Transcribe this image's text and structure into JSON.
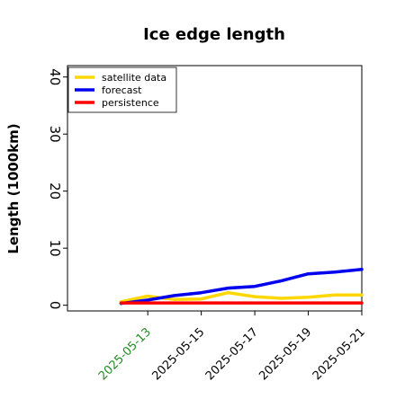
{
  "chart_data": {
    "type": "line",
    "title": "Ice edge length",
    "xlabel": "",
    "ylabel": "Length (1000km)",
    "x": [
      "2025-05-12",
      "2025-05-13",
      "2025-05-14",
      "2025-05-15",
      "2025-05-16",
      "2025-05-17",
      "2025-05-18",
      "2025-05-19",
      "2025-05-20",
      "2025-05-21"
    ],
    "xticks": [
      "2025-05-13",
      "2025-05-15",
      "2025-05-17",
      "2025-05-19",
      "2025-05-21"
    ],
    "xtick_colors": [
      "#228b22",
      "#000000",
      "#000000",
      "#000000",
      "#000000"
    ],
    "xlim": [
      "2025-05-10",
      "2025-05-21"
    ],
    "ylim": [
      -1,
      42
    ],
    "yticks": [
      0,
      10,
      20,
      30,
      40
    ],
    "grid": false,
    "legend_position": "top-left",
    "series": [
      {
        "name": "satellite data",
        "color": "#ffd700",
        "values": [
          0.6,
          1.6,
          1.0,
          1.1,
          2.2,
          1.5,
          1.2,
          1.4,
          1.8,
          1.8
        ]
      },
      {
        "name": "forecast",
        "color": "#0000ee",
        "values": [
          0.3,
          0.9,
          1.7,
          2.2,
          3.0,
          3.3,
          4.3,
          5.5,
          5.8,
          6.3
        ]
      },
      {
        "name": "persistence",
        "color": "#ff0000",
        "values": [
          0.4,
          0.4,
          0.4,
          0.4,
          0.4,
          0.4,
          0.4,
          0.4,
          0.4,
          0.4
        ]
      }
    ]
  }
}
